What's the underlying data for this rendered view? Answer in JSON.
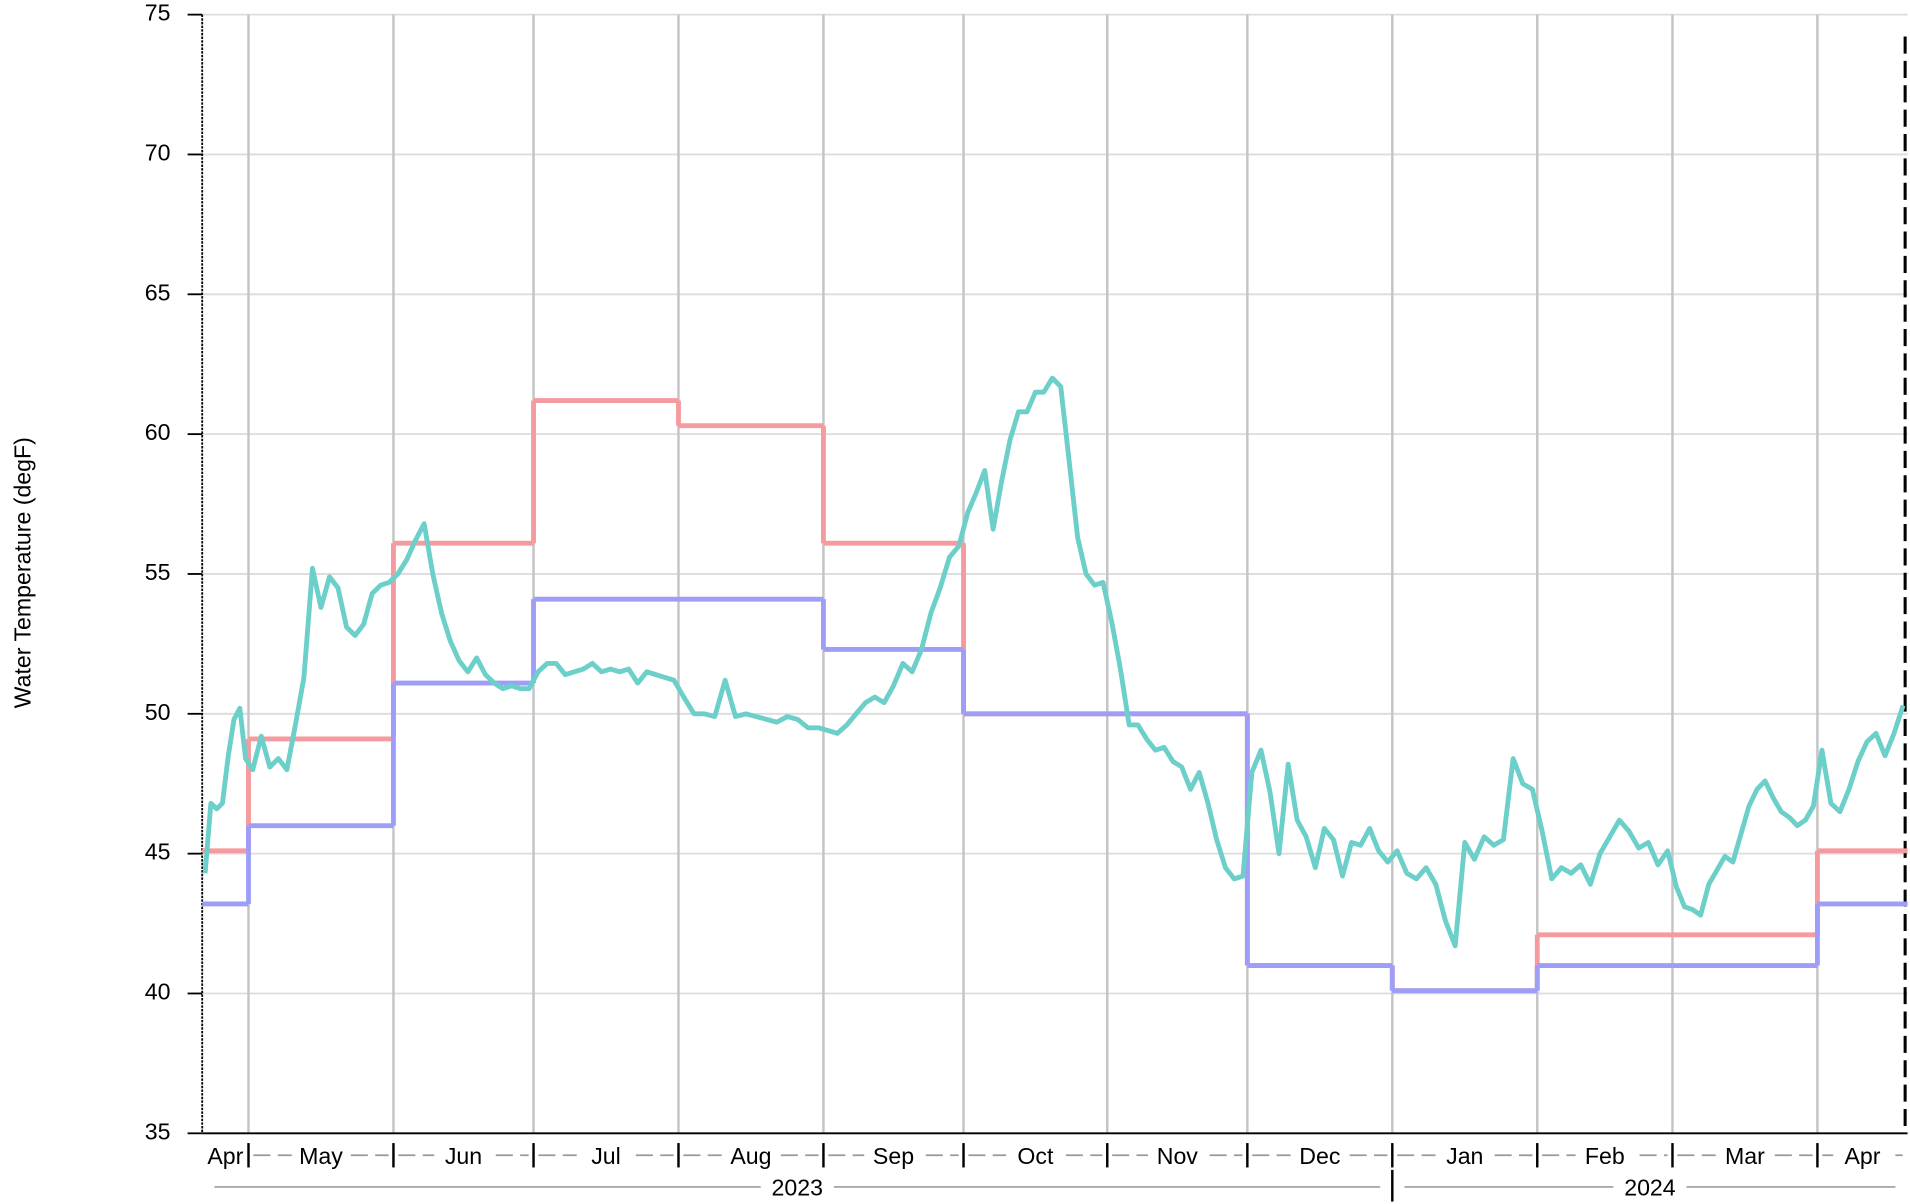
{
  "chart_data": {
    "type": "line",
    "y_label": "Water Temperature (degF)",
    "categories": [
      "Apr",
      "May",
      "Jun",
      "Jul",
      "Aug",
      "Sep",
      "Oct",
      "Nov",
      "Dec",
      "Jan",
      "Feb",
      "Mar",
      "Apr"
    ],
    "year_labels": [
      "2023",
      "2024"
    ],
    "ylim": [
      35,
      75
    ],
    "yticks": [
      35,
      40,
      45,
      50,
      55,
      60,
      65,
      70,
      75
    ],
    "grid": true,
    "series": [
      {
        "color": "#f59a9e",
        "style": "step",
        "values": [
          45.1,
          49.1,
          56.1,
          61.2,
          60.3,
          56.1,
          50.0,
          50.0,
          41.0,
          40.1,
          42.1,
          42.1,
          45.1
        ]
      },
      {
        "color": "#9e9ef8",
        "style": "step",
        "values": [
          43.2,
          46.0,
          51.1,
          54.1,
          54.1,
          52.3,
          50.0,
          50.0,
          41.0,
          40.1,
          41.0,
          41.0,
          43.2
        ]
      },
      {
        "color": "#6ccfca",
        "style": "line",
        "values": [
          [
            44.3,
            46.8,
            46.6,
            46.8,
            48.5,
            49.8,
            50.2,
            48.4
          ],
          [
            48.0,
            49.2,
            48.1,
            48.4,
            48.0,
            49.6,
            51.3,
            55.2,
            53.8,
            54.9,
            54.5,
            53.1,
            52.8,
            53.2,
            54.3,
            54.6,
            54.7
          ],
          [
            55.0,
            55.5,
            56.2,
            56.8,
            55.0,
            53.6,
            52.6,
            51.9,
            51.5,
            52.0,
            51.4,
            51.1,
            50.9,
            51.0,
            50.9,
            50.9
          ],
          [
            51.5,
            51.8,
            51.8,
            51.4,
            51.5,
            51.6,
            51.8,
            51.5,
            51.6,
            51.5,
            51.6,
            51.1,
            51.5,
            51.4,
            51.3,
            51.2
          ],
          [
            50.6,
            50.0,
            50.0,
            49.9,
            51.2,
            49.9,
            50.0,
            49.9,
            49.8,
            49.7,
            49.9,
            49.8,
            49.5,
            49.5
          ],
          [
            49.4,
            49.3,
            49.6,
            50.0,
            50.4,
            50.6,
            50.4,
            51.0,
            51.8,
            51.5,
            52.3,
            53.6,
            54.5,
            55.6,
            56.0
          ],
          [
            57.2,
            57.9,
            58.7,
            56.6,
            58.3,
            59.8,
            60.8,
            60.8,
            61.5,
            61.5,
            62.0,
            61.7,
            59.0,
            56.3,
            55.0,
            54.6,
            54.7
          ],
          [
            53.3,
            51.6,
            49.6,
            49.6,
            49.1,
            48.7,
            48.8,
            48.3,
            48.1,
            47.3,
            47.9,
            46.8,
            45.5,
            44.5,
            44.1,
            44.2
          ],
          [
            47.9,
            48.7,
            47.2,
            45.0,
            48.2,
            46.2,
            45.6,
            44.5,
            45.9,
            45.5,
            44.2,
            45.4,
            45.3,
            45.9,
            45.1,
            44.7
          ],
          [
            45.1,
            44.3,
            44.1,
            44.5,
            43.9,
            42.6,
            41.7,
            45.4,
            44.8,
            45.6,
            45.3,
            45.5,
            48.4,
            47.5,
            47.3
          ],
          [
            45.8,
            44.1,
            44.5,
            44.3,
            44.6,
            43.9,
            45.0,
            45.6,
            46.2,
            45.8,
            45.2,
            45.4,
            44.6,
            45.1
          ],
          [
            43.8,
            43.1,
            43.0,
            42.8,
            43.9,
            44.4,
            44.9,
            44.7,
            45.7,
            46.7,
            47.3,
            47.6,
            47.0,
            46.5,
            46.3,
            46.0,
            46.2,
            46.7
          ],
          [
            48.7,
            46.8,
            46.5,
            47.3,
            48.3,
            49.0,
            49.3,
            48.5,
            49.3,
            50.3
          ]
        ]
      }
    ]
  }
}
